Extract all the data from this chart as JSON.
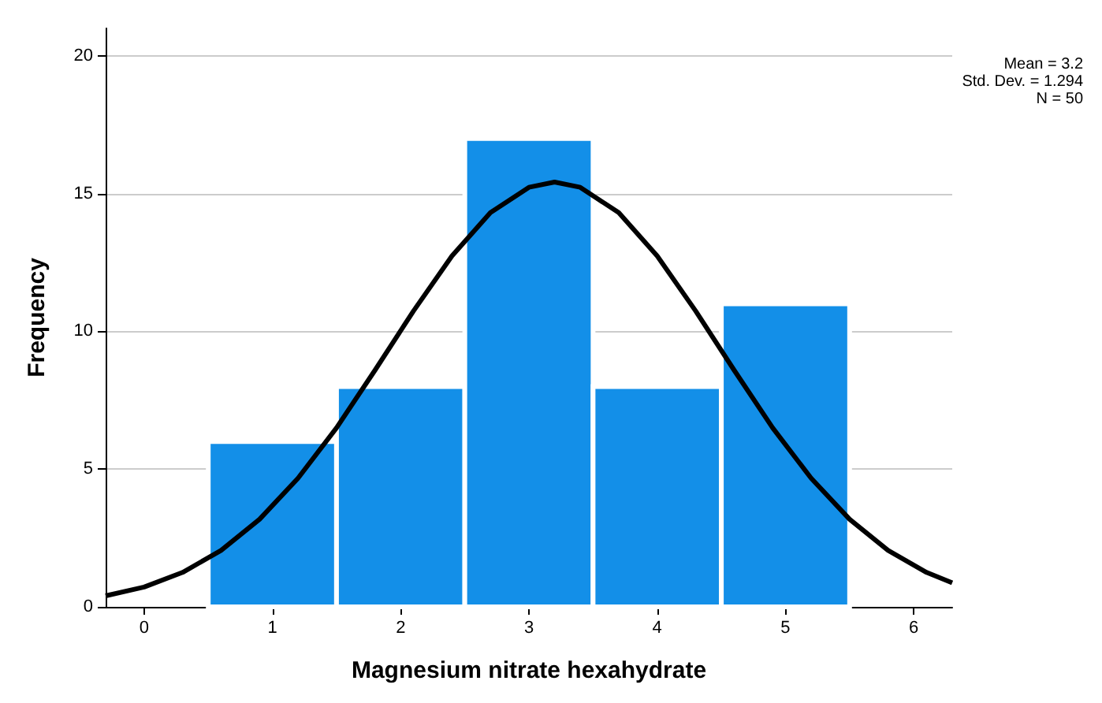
{
  "chart_data": {
    "type": "histogram",
    "xlabel": "Magnesium nitrate hexahydrate",
    "ylabel": "Frequency",
    "bins": [
      0.5,
      1.5,
      2.5,
      3.5,
      4.5,
      5.5
    ],
    "values": [
      6,
      8,
      17,
      8,
      11
    ],
    "color": "#138fe8",
    "series": [
      {
        "type": "line",
        "color": "#000000",
        "x": [
          -0.3,
          0,
          0.3,
          0.6,
          0.9,
          1.2,
          1.5,
          1.8,
          2.1,
          2.4,
          2.7,
          3.0,
          3.2,
          3.4,
          3.7,
          4.0,
          4.3,
          4.6,
          4.9,
          5.2,
          5.5,
          5.8,
          6.1,
          6.3
        ],
        "values": [
          0.4,
          0.72,
          1.25,
          2.05,
          3.18,
          4.67,
          6.5,
          8.59,
          10.74,
          12.74,
          14.31,
          15.23,
          15.42,
          15.23,
          14.31,
          12.74,
          10.74,
          8.59,
          6.5,
          4.67,
          3.18,
          2.05,
          1.25,
          0.87
        ]
      }
    ],
    "xlim": [
      -0.3,
      6.3
    ],
    "xticks": [
      0,
      1,
      2,
      3,
      4,
      5,
      6
    ],
    "ylim": [
      0,
      21
    ],
    "yticks": [
      0,
      5,
      10,
      15,
      20
    ],
    "grid": "y",
    "marker": "none",
    "line_style": "solid",
    "annotations": [
      "Mean = 3.2",
      "Std. Dev. = 1.294",
      "N = 50"
    ]
  }
}
